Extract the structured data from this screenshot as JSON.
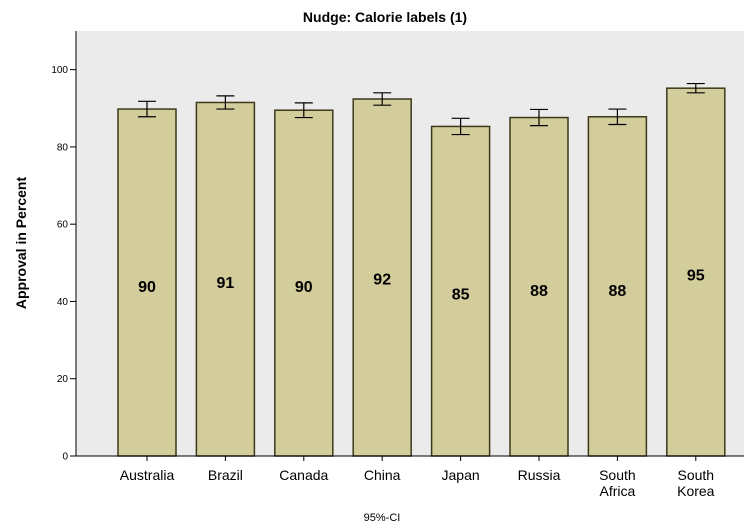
{
  "chart_data": {
    "type": "bar",
    "title": "Nudge: Calorie labels (1)",
    "ylabel": "Approval in Percent",
    "xlabel": "",
    "footnote": "95%-CI",
    "ylim": [
      0,
      110
    ],
    "yticks": [
      0,
      20,
      40,
      60,
      80,
      100
    ],
    "categories": [
      [
        "Australia"
      ],
      [
        "Brazil"
      ],
      [
        "Canada"
      ],
      [
        "China"
      ],
      [
        "Japan"
      ],
      [
        "Russia"
      ],
      [
        "South",
        "Africa"
      ],
      [
        "South",
        "Korea"
      ]
    ],
    "values": [
      89.8,
      91.5,
      89.5,
      92.4,
      85.3,
      87.6,
      87.8,
      95.2
    ],
    "value_labels": [
      "90",
      "91",
      "90",
      "92",
      "85",
      "88",
      "88",
      "95"
    ],
    "value_label_y": [
      44,
      45,
      44,
      46,
      42,
      43,
      43,
      47
    ],
    "ci_low": [
      87.8,
      89.8,
      87.6,
      90.8,
      83.2,
      85.5,
      85.8,
      94.0
    ],
    "ci_high": [
      91.8,
      93.2,
      91.4,
      94.0,
      87.4,
      89.7,
      89.8,
      96.4
    ],
    "colors": {
      "bar_fill": "#d3cc9b",
      "bar_stroke": "#3a3a1a",
      "plot_bg": "#ebebeb",
      "axis": "#000000"
    }
  }
}
